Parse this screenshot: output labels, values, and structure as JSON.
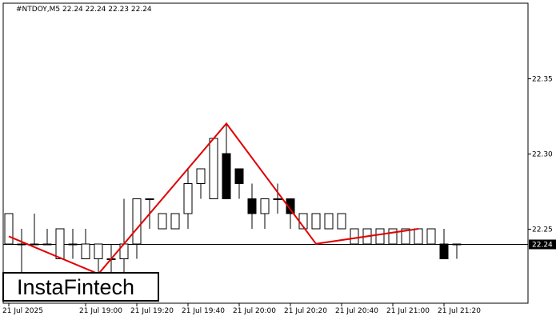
{
  "header": {
    "symbol": "#NTDOY,M5",
    "ohlc": "22.24 22.24 22.23 22.24"
  },
  "logo": {
    "text": "InstaFintech"
  },
  "current_price_label": "22.24",
  "colors": {
    "pattern_line": "#e00000",
    "candle_outline": "#000000",
    "bear_fill": "#000000",
    "bull_fill": "#ffffff",
    "price_tag_bg": "#000000",
    "price_tag_text": "#ffffff"
  },
  "chart_data": {
    "type": "candlestick",
    "title": "#NTDOY,M5  22.24 22.24 22.23 22.24",
    "ylim": [
      22.19,
      22.39
    ],
    "y_ticks": [
      "22.35",
      "22.30",
      "22.25"
    ],
    "x_ticks": [
      "21 Jul 2025",
      "21 Jul 19:00",
      "21 Jul 19:20",
      "21 Jul 19:40",
      "21 Jul 20:00",
      "21 Jul 20:20",
      "21 Jul 20:40",
      "21 Jul 21:00",
      "21 Jul 21:20"
    ],
    "x_tick_bar_index": [
      0,
      6,
      10,
      14,
      18,
      22,
      26,
      30,
      34
    ],
    "current_price": 22.24,
    "candles": [
      [
        22.24,
        22.26,
        22.24,
        22.26
      ],
      [
        22.24,
        22.25,
        22.22,
        22.24
      ],
      [
        22.24,
        22.26,
        22.24,
        22.24
      ],
      [
        22.24,
        22.25,
        22.24,
        22.24
      ],
      [
        22.23,
        22.25,
        22.23,
        22.25
      ],
      [
        22.24,
        22.25,
        22.23,
        22.24
      ],
      [
        22.23,
        22.25,
        22.23,
        22.24
      ],
      [
        22.23,
        22.24,
        22.22,
        22.24
      ],
      [
        22.23,
        22.24,
        22.22,
        22.23
      ],
      [
        22.23,
        22.27,
        22.22,
        22.24
      ],
      [
        22.24,
        22.27,
        22.23,
        22.27
      ],
      [
        22.27,
        22.27,
        22.25,
        22.27
      ],
      [
        22.25,
        22.26,
        22.25,
        22.26
      ],
      [
        22.25,
        22.26,
        22.25,
        22.26
      ],
      [
        22.26,
        22.29,
        22.25,
        22.28
      ],
      [
        22.28,
        22.29,
        22.27,
        22.29
      ],
      [
        22.27,
        22.31,
        22.27,
        22.31
      ],
      [
        22.3,
        22.32,
        22.27,
        22.27
      ],
      [
        22.29,
        22.29,
        22.27,
        22.28
      ],
      [
        22.27,
        22.28,
        22.25,
        22.26
      ],
      [
        22.26,
        22.27,
        22.25,
        22.27
      ],
      [
        22.27,
        22.28,
        22.26,
        22.27
      ],
      [
        22.27,
        22.27,
        22.25,
        22.26
      ],
      [
        22.25,
        22.26,
        22.25,
        22.26
      ],
      [
        22.25,
        22.26,
        22.25,
        22.26
      ],
      [
        22.25,
        22.26,
        22.25,
        22.26
      ],
      [
        22.25,
        22.26,
        22.25,
        22.26
      ],
      [
        22.24,
        22.25,
        22.24,
        22.25
      ],
      [
        22.24,
        22.25,
        22.24,
        22.25
      ],
      [
        22.24,
        22.25,
        22.24,
        22.25
      ],
      [
        22.24,
        22.25,
        22.24,
        22.25
      ],
      [
        22.24,
        22.25,
        22.24,
        22.25
      ],
      [
        22.24,
        22.25,
        22.24,
        22.25
      ],
      [
        22.24,
        22.25,
        22.24,
        22.25
      ],
      [
        22.24,
        22.25,
        22.23,
        22.23
      ],
      [
        22.24,
        22.24,
        22.23,
        22.24
      ]
    ],
    "pattern_line": [
      {
        "bar": 0,
        "price": 22.245
      },
      {
        "bar": 7,
        "price": 22.22
      },
      {
        "bar": 17,
        "price": 22.32
      },
      {
        "bar": 24,
        "price": 22.24
      },
      {
        "bar": 32,
        "price": 22.25
      }
    ]
  }
}
